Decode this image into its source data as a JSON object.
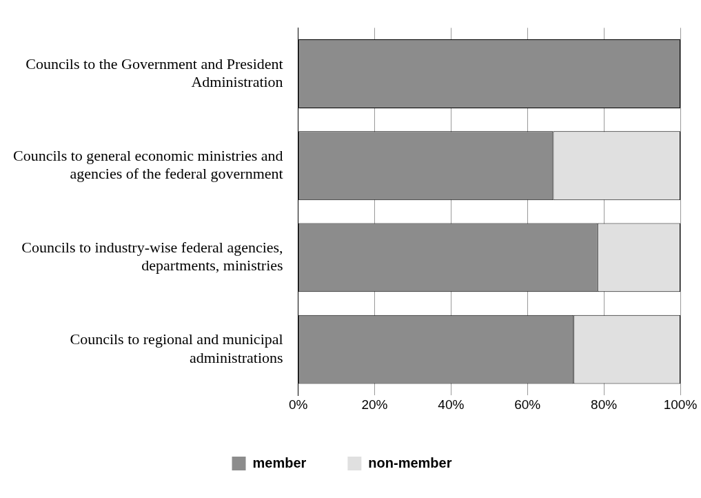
{
  "chart_data": {
    "type": "bar",
    "orientation": "horizontal",
    "stacked": true,
    "categories": [
      "Councils to the Government and President Administration",
      "Councils to general economic ministries and agencies of the federal government",
      "Councils to industry-wise federal agencies, departments, ministries",
      "Councils to regional and municipal administrations"
    ],
    "series": [
      {
        "name": "member",
        "color": "#8c8c8c",
        "values": [
          100,
          66.7,
          78.3,
          72.1
        ]
      },
      {
        "name": "non-member",
        "color": "#e0e0e0",
        "values": [
          0,
          33.3,
          21.7,
          27.9
        ]
      }
    ],
    "xlim": [
      0,
      100
    ],
    "xticks": [
      {
        "value": 0,
        "label": "0%"
      },
      {
        "value": 20,
        "label": "20%"
      },
      {
        "value": 40,
        "label": "40%"
      },
      {
        "value": 60,
        "label": "60%"
      },
      {
        "value": 80,
        "label": "80%"
      },
      {
        "value": 100,
        "label": "100%"
      }
    ],
    "grid": "x",
    "legend": "bottom"
  }
}
